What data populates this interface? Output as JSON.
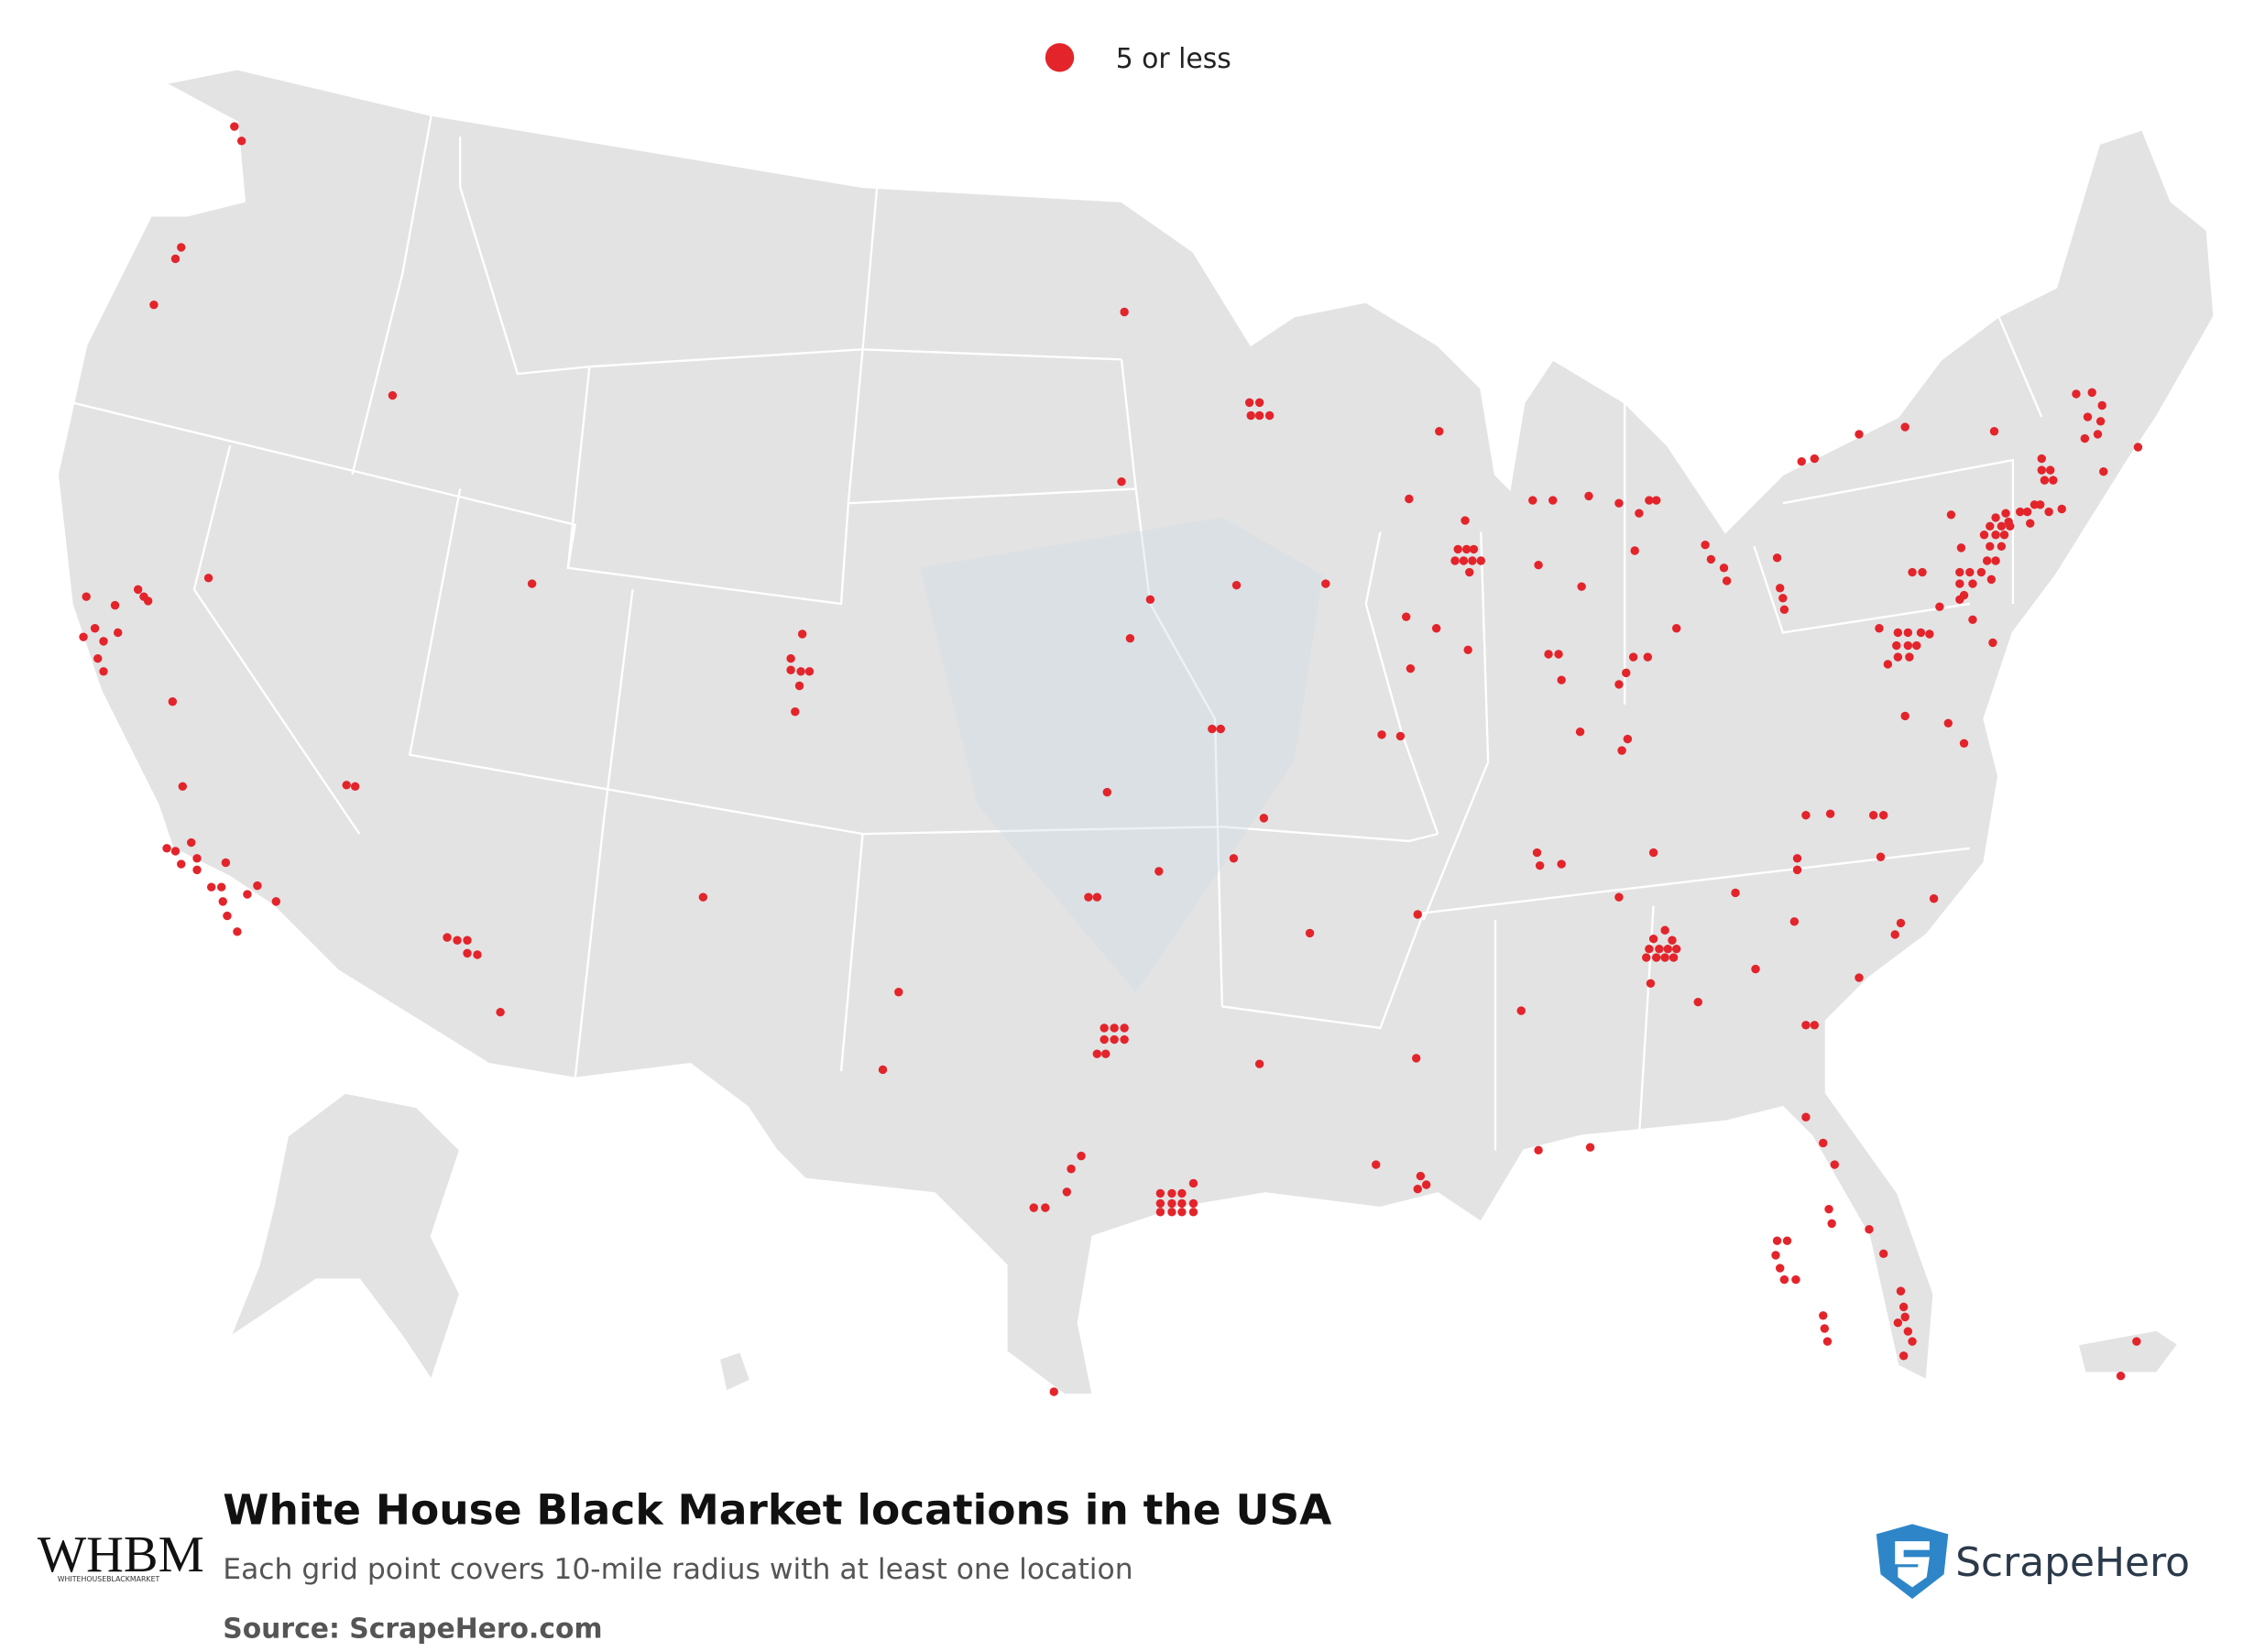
{
  "legend": {
    "label": "5 or less"
  },
  "footer": {
    "title": "White House Black Market locations in the USA",
    "subtitle": "Each grid point covers 10-mile radius with at least one location",
    "source": "Source: ScrapeHero.com"
  },
  "logos": {
    "brand": "WHBM",
    "brand_tagline": "WHITEHOUSEBLACKMARKET",
    "publisher": "ScrapeHero"
  }
}
